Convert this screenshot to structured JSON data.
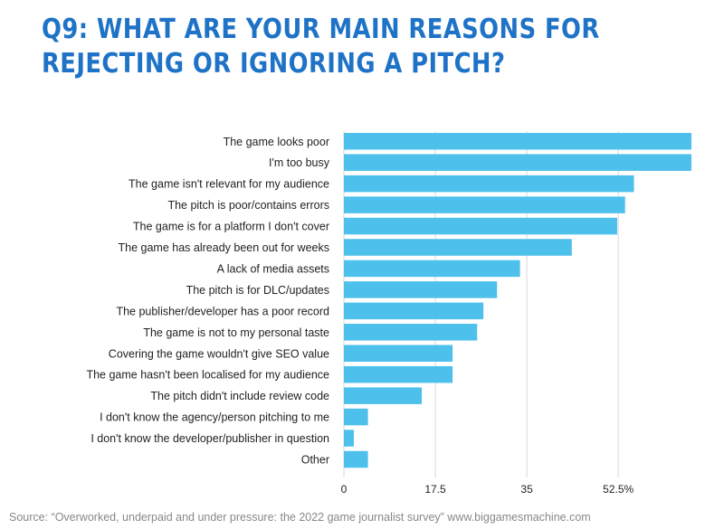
{
  "title": "Q9: WHAT ARE YOUR MAIN REASONS FOR REJECTING OR IGNORING A PITCH?",
  "source": "Source: “Overworked, underpaid and under pressure: the 2022 game journalist survey” www.biggamesmachine.com",
  "colors": {
    "title": "#1f73c7",
    "bar": "#4dc0ec",
    "grid": "#d9d9d9",
    "label": "#222222",
    "source": "#888888"
  },
  "chart_data": {
    "type": "bar",
    "orientation": "horizontal",
    "categories": [
      "The game looks poor",
      "I'm too busy",
      "The game isn't relevant for my audience",
      "The pitch is poor/contains errors",
      "The game is for a platform I don't cover",
      "The game has already been out for weeks",
      "A lack of media assets",
      "The pitch is for DLC/updates",
      "The publisher/developer has a poor record",
      "The game is not to my personal taste",
      "Covering the game wouldn't give SEO value",
      "The game hasn't been localised for my audience",
      "The pitch didn't include review code",
      "I don't know the agency/person pitching to me",
      "I don't know the developer/publisher in question",
      "Other"
    ],
    "values": [
      66.5,
      66.5,
      55.5,
      53.8,
      52.3,
      43.6,
      33.7,
      29.3,
      26.7,
      25.5,
      20.8,
      20.8,
      14.9,
      4.6,
      1.9,
      4.6
    ],
    "xlim": [
      0,
      66.5
    ],
    "xticks": [
      0,
      17.5,
      35,
      52.5
    ],
    "xtick_labels": [
      "0",
      "17.5",
      "35",
      "52.5%"
    ],
    "grid": true,
    "xlabel": "",
    "ylabel": ""
  }
}
